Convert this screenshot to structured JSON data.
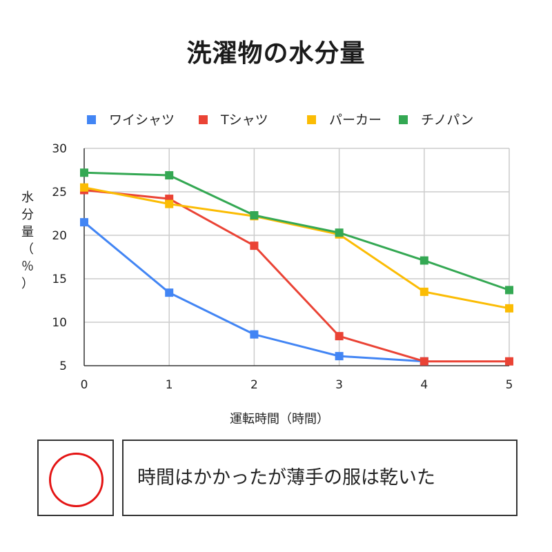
{
  "chart_data": {
    "type": "line",
    "title": "洗濯物の水分量",
    "xlabel": "運転時間（時間）",
    "ylabel": "水分量（％）",
    "x": [
      0,
      1,
      2,
      3,
      4,
      5
    ],
    "xticks": [
      "0",
      "1",
      "2",
      "3",
      "4",
      "5"
    ],
    "yticks": [
      "5",
      "10",
      "15",
      "20",
      "25",
      "30"
    ],
    "ylim": [
      5,
      30
    ],
    "grid": true,
    "legend_position": "top",
    "series": [
      {
        "name": "ワイシャツ",
        "color": "#4285f4",
        "values": [
          21.5,
          13.4,
          8.6,
          6.1,
          5.5,
          null
        ]
      },
      {
        "name": "Tシャツ",
        "color": "#ea4335",
        "values": [
          25.2,
          24.2,
          18.8,
          8.4,
          5.5,
          5.5
        ]
      },
      {
        "name": "パーカー",
        "color": "#fbbc04",
        "values": [
          25.5,
          23.6,
          22.2,
          20.1,
          13.5,
          11.6
        ]
      },
      {
        "name": "チノパン",
        "color": "#34a853",
        "values": [
          27.2,
          26.9,
          22.3,
          20.3,
          17.1,
          13.7
        ]
      }
    ]
  },
  "evaluation": {
    "mark_icon": "red-circle-mark",
    "comment": "時間はかかったが薄手の服は乾いた"
  }
}
